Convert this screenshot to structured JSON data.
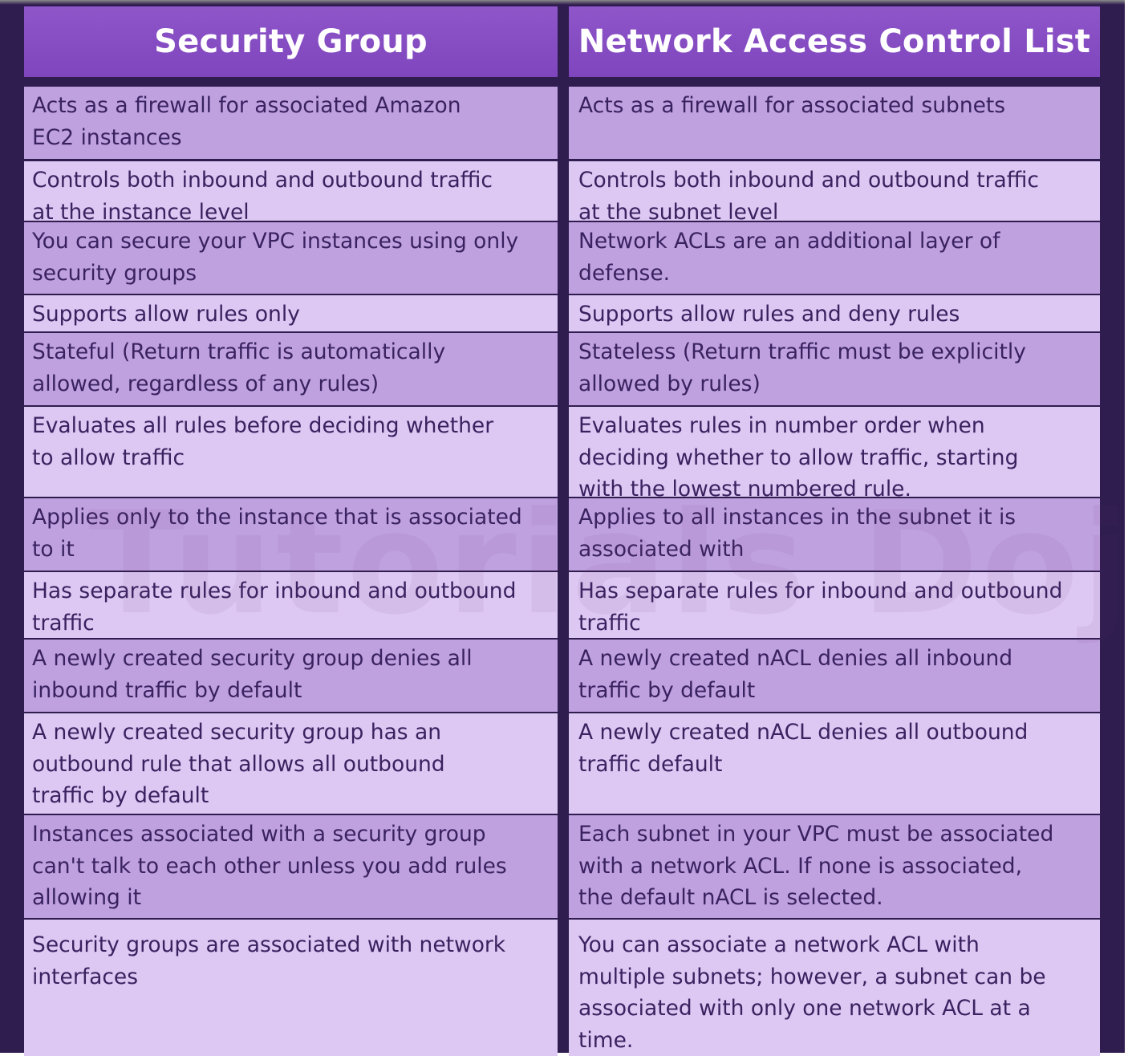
{
  "table": {
    "headers": [
      "Security Group",
      "Network Access Control List"
    ],
    "rows": [
      [
        "Acts as a firewall for associated Amazon\nEC2 instances",
        "Acts as a firewall for associated subnets"
      ],
      [
        "Controls both inbound and outbound traffic\nat the instance level",
        "Controls both inbound and outbound traffic\nat the subnet level"
      ],
      [
        "You can secure your VPC instances using only\nsecurity groups",
        "Network ACLs are an additional layer of\ndefense."
      ],
      [
        "Supports allow rules only",
        "Supports allow rules and deny rules"
      ],
      [
        "Stateful (Return traffic is automatically\nallowed, regardless of any rules)",
        "Stateless (Return traffic must be explicitly\nallowed by rules)"
      ],
      [
        "Evaluates all rules before deciding whether\nto allow traffic",
        "Evaluates rules in number order when\ndeciding whether to allow traffic, starting\nwith the lowest numbered rule."
      ],
      [
        "Applies only to the instance that is associated\nto it",
        "Applies to all instances in the subnet it is\nassociated with"
      ],
      [
        "Has separate rules for inbound and outbound\ntraffic",
        "Has separate rules for inbound and outbound\ntraffic"
      ],
      [
        "A newly created security group denies all\ninbound traffic by default",
        "A newly created nACL denies all inbound\ntraffic by default"
      ],
      [
        "A newly created security group has an\noutbound rule that allows all outbound\ntraffic by default",
        "A newly created nACL denies all outbound\ntraffic default"
      ],
      [
        "Instances associated with a security group\ncan't talk to each other unless you add rules\nallowing it",
        "Each subnet in your VPC must be associated\nwith a network ACL. If none is associated,\nthe default nACL is selected."
      ],
      [
        "Security groups are associated with network\ninterfaces",
        "You can associate a network ACL with\nmultiple subnets; however, a subnet can be\nassociated with only one network ACL at a\ntime."
      ]
    ]
  },
  "watermark": "Tutorials Dojo",
  "colors": {
    "frame": "#2f1d4f",
    "header": "#8e56c9",
    "row_dark": "#bfa1e0",
    "row_light": "#ddc8f3",
    "text": "#3a2260"
  }
}
